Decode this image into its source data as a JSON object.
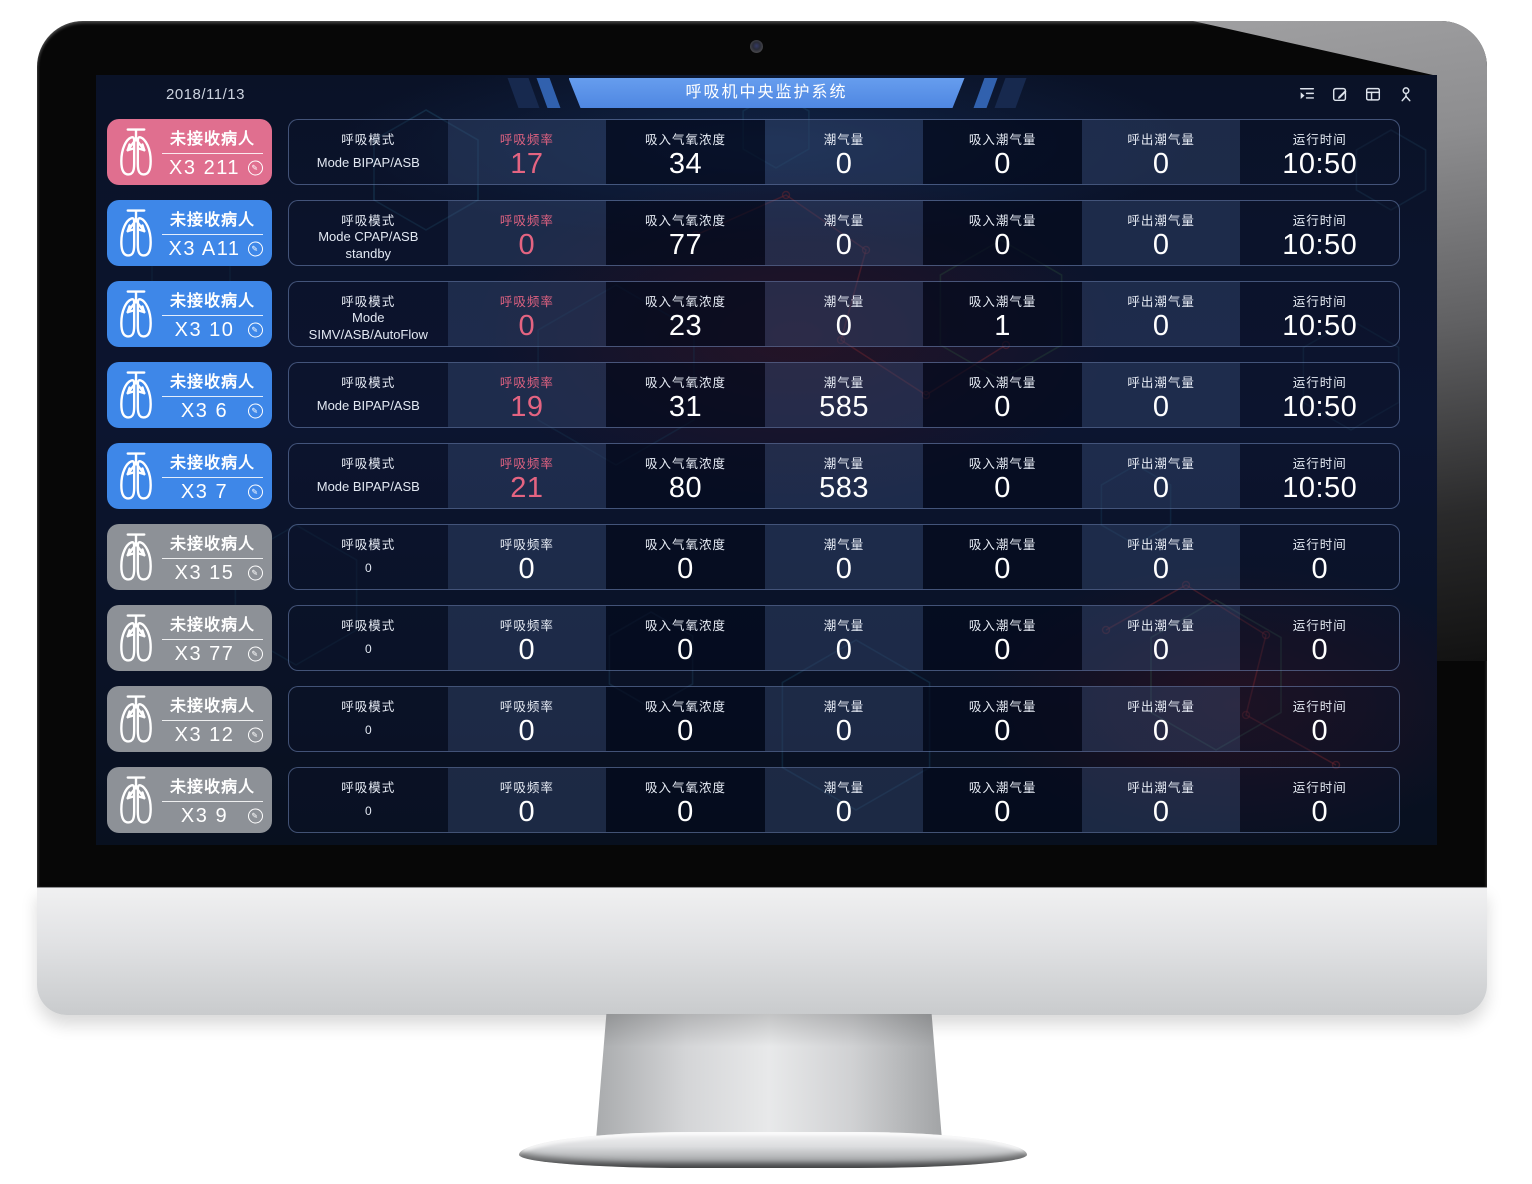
{
  "window": {
    "date": "2018/11/13",
    "title": "呼吸机中央监护系统"
  },
  "toolbar": {
    "icons": [
      "menu-collapse-icon",
      "edit-note-icon",
      "layout-icon",
      "user-icon"
    ]
  },
  "badge_label": "未接收病人",
  "table": {
    "columns": [
      "呼吸模式",
      "呼吸频率",
      "吸入气氧浓度",
      "潮气量",
      "吸入潮气量",
      "呼出潮气量",
      "运行时间"
    ]
  },
  "rows": [
    {
      "bed": "X3 211",
      "color": "pink",
      "active": true,
      "values": [
        "Mode BIPAP/ASB",
        "17",
        "34",
        "0",
        "0",
        "0",
        "10:50"
      ]
    },
    {
      "bed": "X3 A11",
      "color": "blue",
      "active": true,
      "values": [
        "Mode CPAP/ASB standby",
        "0",
        "77",
        "0",
        "0",
        "0",
        "10:50"
      ]
    },
    {
      "bed": "X3 10",
      "color": "blue",
      "active": true,
      "values": [
        "Mode SIMV/ASB/AutoFlow standby",
        "0",
        "23",
        "0",
        "1",
        "0",
        "10:50"
      ]
    },
    {
      "bed": "X3 6",
      "color": "blue",
      "active": true,
      "values": [
        "Mode BIPAP/ASB",
        "19",
        "31",
        "585",
        "0",
        "0",
        "10:50"
      ]
    },
    {
      "bed": "X3 7",
      "color": "blue",
      "active": true,
      "values": [
        "Mode BIPAP/ASB",
        "21",
        "80",
        "583",
        "0",
        "0",
        "10:50"
      ]
    },
    {
      "bed": "X3 15",
      "color": "gray",
      "active": false,
      "values": [
        "0",
        "0",
        "0",
        "0",
        "0",
        "0",
        "0"
      ]
    },
    {
      "bed": "X3 77",
      "color": "gray",
      "active": false,
      "values": [
        "0",
        "0",
        "0",
        "0",
        "0",
        "0",
        "0"
      ]
    },
    {
      "bed": "X3 12",
      "color": "gray",
      "active": false,
      "values": [
        "0",
        "0",
        "0",
        "0",
        "0",
        "0",
        "0"
      ]
    },
    {
      "bed": "X3 9",
      "color": "gray",
      "active": false,
      "values": [
        "0",
        "0",
        "0",
        "0",
        "0",
        "0",
        "0"
      ]
    }
  ],
  "colors": {
    "accent_blue": "#3e87e8",
    "alarm_pink": "#e06f8f",
    "offline_gray": "#8d9197",
    "rate_pink": "#e0617f",
    "banner_blue": "#5b93ea"
  }
}
